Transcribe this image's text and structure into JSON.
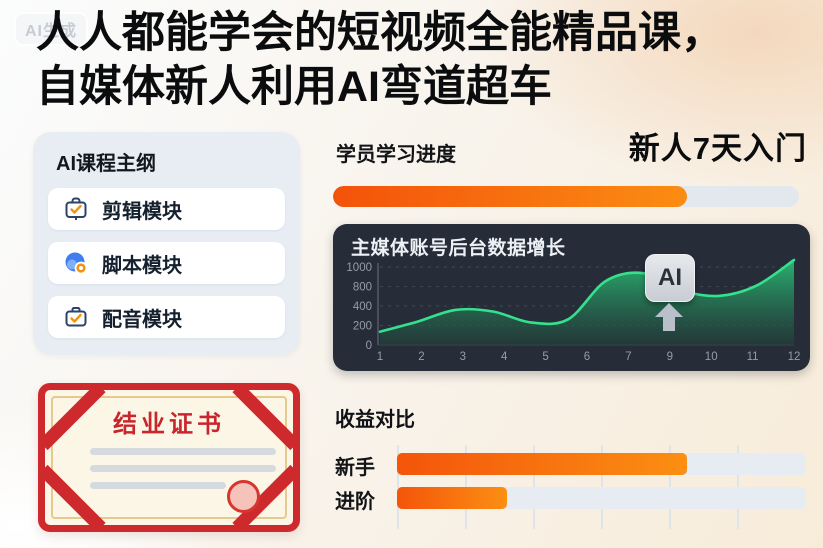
{
  "watermark": "AI生成",
  "title": {
    "line1": "人人都能学会的短视频全能精品课，",
    "line2": "自媒体新人利用AI弯道超车"
  },
  "sidebar": {
    "heading": "AI课程主纲",
    "items": [
      {
        "label": "剪辑模块",
        "icon": "clipboard-check-icon"
      },
      {
        "label": "脚本模块",
        "icon": "globe-location-icon"
      },
      {
        "label": "配音模块",
        "icon": "briefcase-check-icon"
      }
    ]
  },
  "progress": {
    "label": "学员学习进度",
    "highlight": "新人7天入门",
    "percent": 76,
    "fill_start": "#f4520a",
    "fill_end": "#fb8d13",
    "track_color": "#e3e8ef"
  },
  "chart_data": {
    "type": "area",
    "title": "主媒体账号后台数据增长",
    "x": [
      1,
      2,
      3,
      4,
      5,
      6,
      7,
      8,
      9,
      10,
      11,
      12
    ],
    "values": [
      170,
      300,
      450,
      430,
      290,
      330,
      820,
      920,
      700,
      630,
      760,
      1090
    ],
    "x_tick_labels": [
      "1",
      "2",
      "3",
      "4",
      "5",
      "6",
      "7",
      "9",
      "10",
      "11",
      "12"
    ],
    "y_tick_labels": [
      "1000",
      "800",
      "400",
      "200",
      "0"
    ],
    "ylim": [
      0,
      1000
    ],
    "grid": true,
    "legend": false,
    "annotation": "AI",
    "line_color": "#35e18c",
    "area_top_color": "#2abb74",
    "area_bottom_color": "#21433a",
    "bg_color": "#262d39",
    "tick_color": "#959daa"
  },
  "comparison": {
    "heading": "收益对比",
    "bars": [
      {
        "label": "新手",
        "percent": 71
      },
      {
        "label": "进阶",
        "percent": 27
      }
    ],
    "fill_start": "#f4550a",
    "fill_end": "#fb8f13",
    "track_color": "#e7ecf2"
  },
  "certificate": {
    "title": "结业证书",
    "border_color": "#ce2a2e",
    "bg_color": "#fcf6e7"
  }
}
